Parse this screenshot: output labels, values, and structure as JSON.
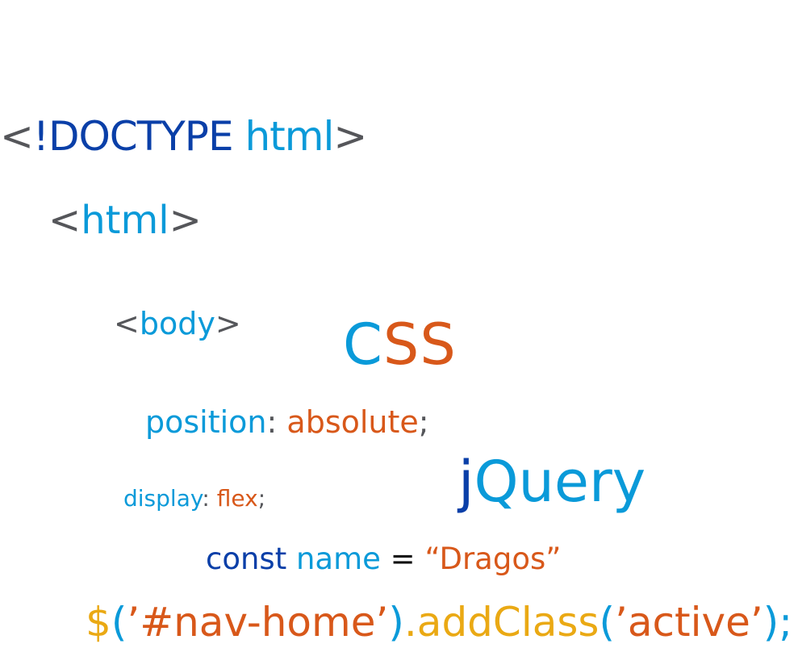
{
  "colors": {
    "gray": "#55565a",
    "navy": "#0a3fa8",
    "sky": "#0a9ad9",
    "orange": "#d8581a",
    "gold": "#eaa914",
    "black": "#111111"
  },
  "lines": {
    "doctype": [
      "<",
      "!DOCTYPE",
      " html",
      ">"
    ],
    "html": [
      "<",
      "html",
      ">"
    ],
    "body": [
      "<",
      "body",
      ">"
    ],
    "css": [
      "C",
      "SS"
    ],
    "position": [
      "position",
      ": ",
      "absolute",
      ";"
    ],
    "jquery": [
      "j",
      "Query"
    ],
    "display": [
      "display",
      ": ",
      "flex",
      ";"
    ],
    "const": [
      "const",
      " name",
      " = ",
      "“Dragos”"
    ],
    "jq_call": [
      "$",
      "(",
      "’#nav-home’",
      ")",
      ".addClass",
      "(",
      "’active’",
      ")",
      ";"
    ]
  }
}
